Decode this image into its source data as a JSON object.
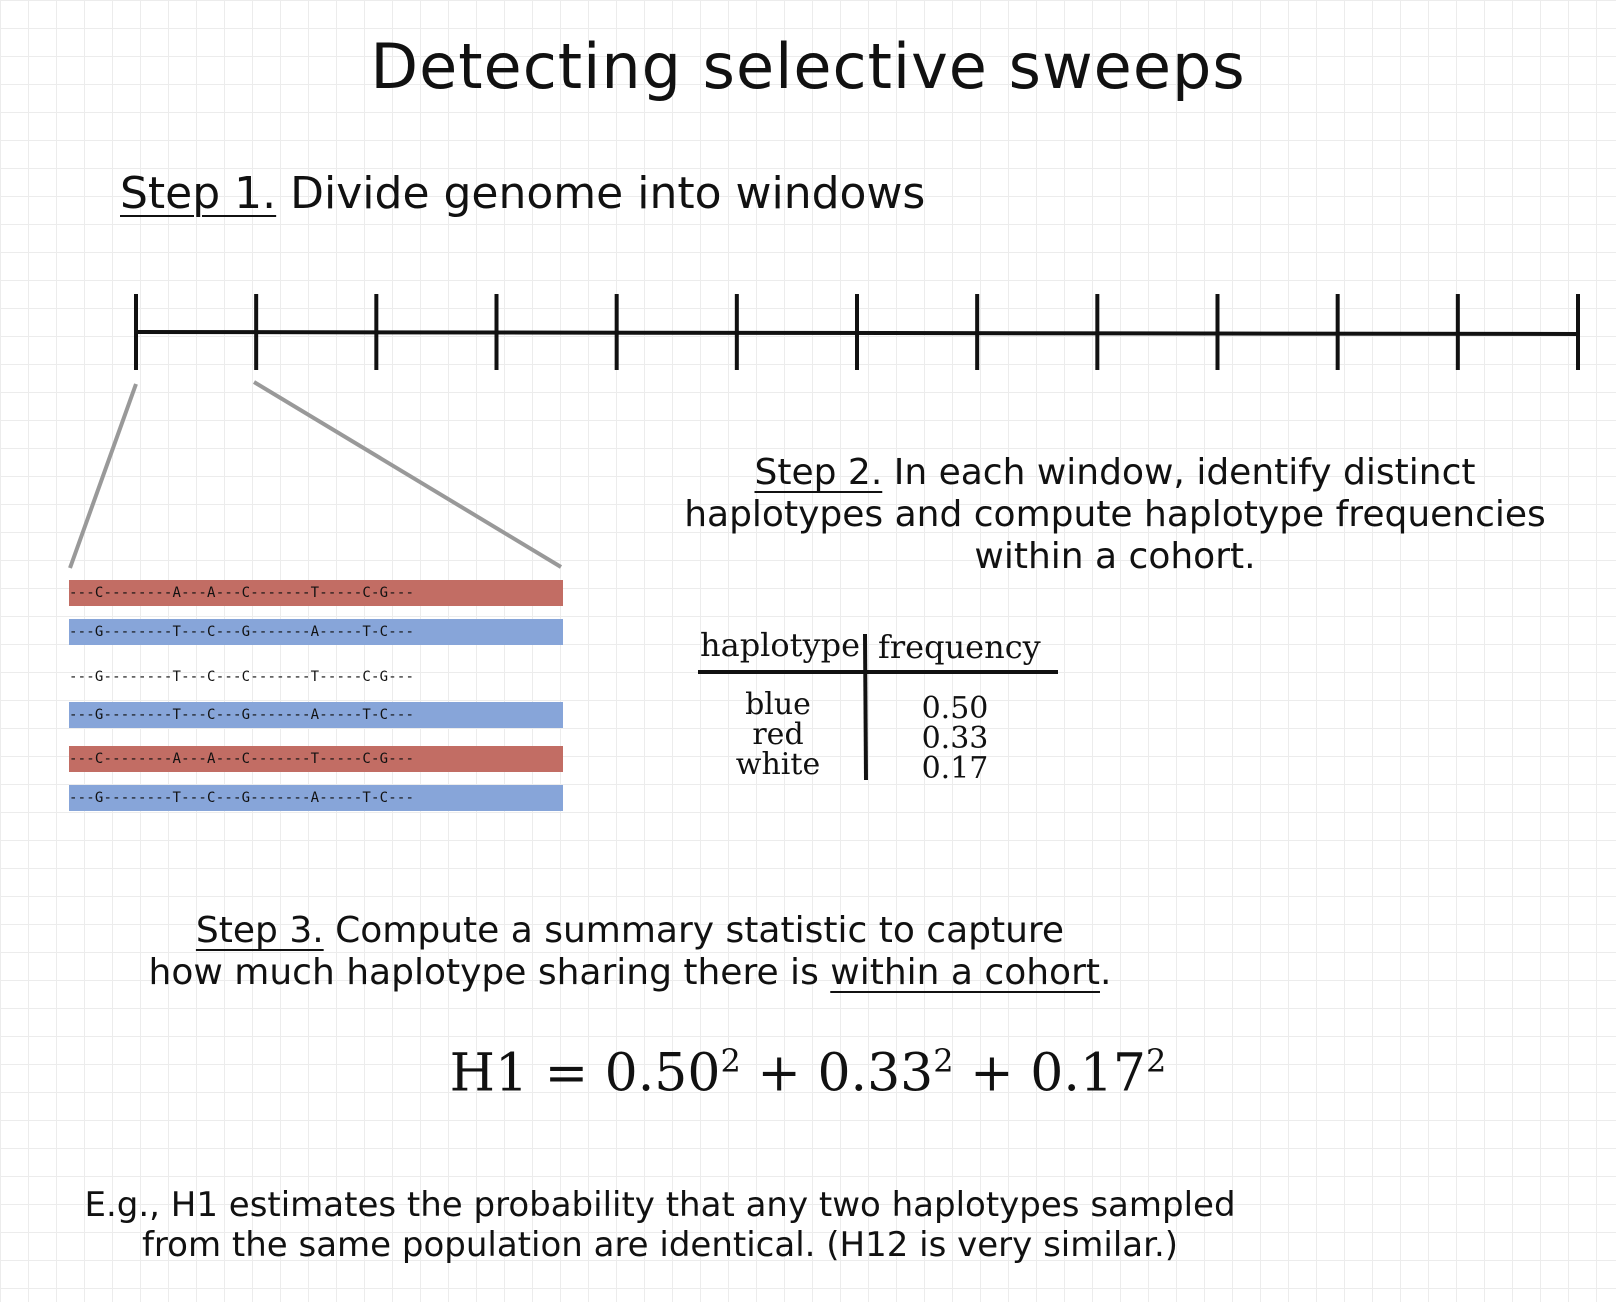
{
  "title": "Detecting selective sweeps",
  "step1": {
    "label": "Step 1.",
    "text": " Divide genome into windows"
  },
  "step2": {
    "label": "Step 2.",
    "text_line1": " In each window, identify distinct",
    "text_line2": "haplotypes and compute haplotype frequencies",
    "text_line3": "within a cohort."
  },
  "haplotypes": [
    {
      "color": "red",
      "fill": "#c26d64",
      "sequence": "---C--------A---A---C-------T-----C-G---"
    },
    {
      "color": "blue",
      "fill": "#87a5d9",
      "sequence": "---G--------T---C---G-------A-----T-C---"
    },
    {
      "color": "white",
      "fill": "#ffffff",
      "sequence": "---G--------T---C---C-------T-----C-G---"
    },
    {
      "color": "blue",
      "fill": "#87a5d9",
      "sequence": "---G--------T---C---G-------A-----T-C---"
    },
    {
      "color": "red",
      "fill": "#c26d64",
      "sequence": "---C--------A---A---C-------T-----C-G---"
    },
    {
      "color": "blue",
      "fill": "#87a5d9",
      "sequence": "---G--------T---C---G-------A-----T-C---"
    }
  ],
  "table": {
    "headers": [
      "haplotype",
      "frequency"
    ],
    "rows": [
      {
        "haplotype": "blue",
        "frequency": "0.50"
      },
      {
        "haplotype": "red",
        "frequency": "0.33"
      },
      {
        "haplotype": "white",
        "frequency": "0.17"
      }
    ]
  },
  "step3": {
    "label": "Step 3.",
    "text_line1": " Compute a summary statistic to capture",
    "text_line2_pre": "how much haplotype sharing there is ",
    "text_line2_underlined": "within a cohort",
    "text_line2_post": "."
  },
  "formula": {
    "lhs": "H1 = ",
    "terms": [
      {
        "base": "0.50",
        "exp": "2"
      },
      {
        "base": "0.33",
        "exp": "2"
      },
      {
        "base": "0.17",
        "exp": "2"
      }
    ],
    "op": " + "
  },
  "eg": {
    "line1": "E.g., H1 estimates the probability that any two haplotypes sampled",
    "line2": "from the same population are identical. (H12 is very similar.)"
  },
  "genome_windows": 12
}
